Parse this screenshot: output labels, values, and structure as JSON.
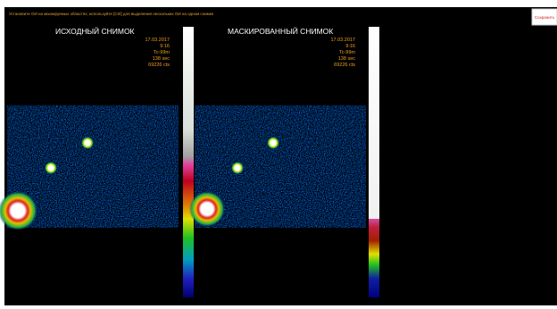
{
  "header": {
    "instruction": "Установите ОИ на маскируемых областях; используйте [Ctrl] для выделения нескольких ОИ на одном снимке",
    "button": "Сохранить"
  },
  "panels": [
    {
      "title": "ИСХОДНЫЙ СНИМОК",
      "info": [
        "17.03.2017",
        "9:16",
        "Tc-99m",
        "138 sec",
        "69226 cts"
      ]
    },
    {
      "title": "МАСКИРОВАННЫЙ СНИМОК",
      "info": [
        "17.03.2017",
        "9:16",
        "Tc-99m",
        "138 sec",
        "69226 cts"
      ]
    }
  ]
}
